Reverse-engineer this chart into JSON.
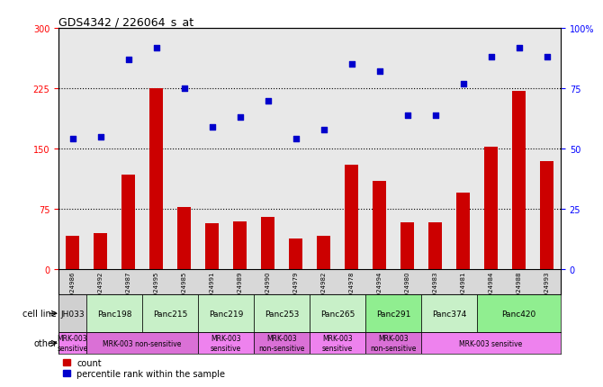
{
  "title": "GDS4342 / 226064_s_at",
  "samples": [
    "GSM924986",
    "GSM924992",
    "GSM924987",
    "GSM924995",
    "GSM924985",
    "GSM924991",
    "GSM924989",
    "GSM924990",
    "GSM924979",
    "GSM924982",
    "GSM924978",
    "GSM924994",
    "GSM924980",
    "GSM924983",
    "GSM924981",
    "GSM924984",
    "GSM924988",
    "GSM924993"
  ],
  "counts": [
    42,
    45,
    118,
    225,
    78,
    57,
    60,
    65,
    38,
    42,
    130,
    110,
    58,
    58,
    95,
    152,
    222,
    135
  ],
  "percentiles": [
    54,
    55,
    87,
    92,
    75,
    59,
    63,
    70,
    54,
    58,
    85,
    82,
    64,
    64,
    77,
    88,
    92,
    88
  ],
  "cell_lines": [
    {
      "name": "JH033",
      "start": 0,
      "end": 1,
      "color": "#d0d0d0"
    },
    {
      "name": "Panc198",
      "start": 1,
      "end": 3,
      "color": "#c8f0c8"
    },
    {
      "name": "Panc215",
      "start": 3,
      "end": 5,
      "color": "#c8f0c8"
    },
    {
      "name": "Panc219",
      "start": 5,
      "end": 7,
      "color": "#c8f0c8"
    },
    {
      "name": "Panc253",
      "start": 7,
      "end": 9,
      "color": "#c8f0c8"
    },
    {
      "name": "Panc265",
      "start": 9,
      "end": 11,
      "color": "#c8f0c8"
    },
    {
      "name": "Panc291",
      "start": 11,
      "end": 13,
      "color": "#90ee90"
    },
    {
      "name": "Panc374",
      "start": 13,
      "end": 15,
      "color": "#c8f0c8"
    },
    {
      "name": "Panc420",
      "start": 15,
      "end": 18,
      "color": "#90ee90"
    }
  ],
  "other_groups": [
    {
      "name": "MRK-003\nsensitive",
      "start": 0,
      "end": 1,
      "color": "#ee82ee"
    },
    {
      "name": "MRK-003 non-sensitive",
      "start": 1,
      "end": 5,
      "color": "#da70d6"
    },
    {
      "name": "MRK-003\nsensitive",
      "start": 5,
      "end": 7,
      "color": "#ee82ee"
    },
    {
      "name": "MRK-003\nnon-sensitive",
      "start": 7,
      "end": 9,
      "color": "#da70d6"
    },
    {
      "name": "MRK-003\nsensitive",
      "start": 9,
      "end": 11,
      "color": "#ee82ee"
    },
    {
      "name": "MRK-003\nnon-sensitive",
      "start": 11,
      "end": 13,
      "color": "#da70d6"
    },
    {
      "name": "MRK-003 sensitive",
      "start": 13,
      "end": 18,
      "color": "#ee82ee"
    }
  ],
  "bar_color": "#cc0000",
  "dot_color": "#0000cc",
  "left_ylim": [
    0,
    300
  ],
  "left_yticks": [
    0,
    75,
    150,
    225,
    300
  ],
  "right_ylim": [
    0,
    100
  ],
  "right_yticks": [
    0,
    25,
    50,
    75,
    100
  ],
  "hlines": [
    75,
    150,
    225
  ],
  "col_bg_colors": [
    "#e8e8e8",
    "#e8e8e8",
    "#e8e8e8",
    "#e8e8e8",
    "#e8e8e8",
    "#e8e8e8",
    "#e8e8e8",
    "#e8e8e8",
    "#e8e8e8",
    "#e8e8e8",
    "#e8e8e8",
    "#e8e8e8",
    "#e8e8e8",
    "#e8e8e8",
    "#e8e8e8",
    "#e8e8e8",
    "#e8e8e8",
    "#e8e8e8"
  ]
}
